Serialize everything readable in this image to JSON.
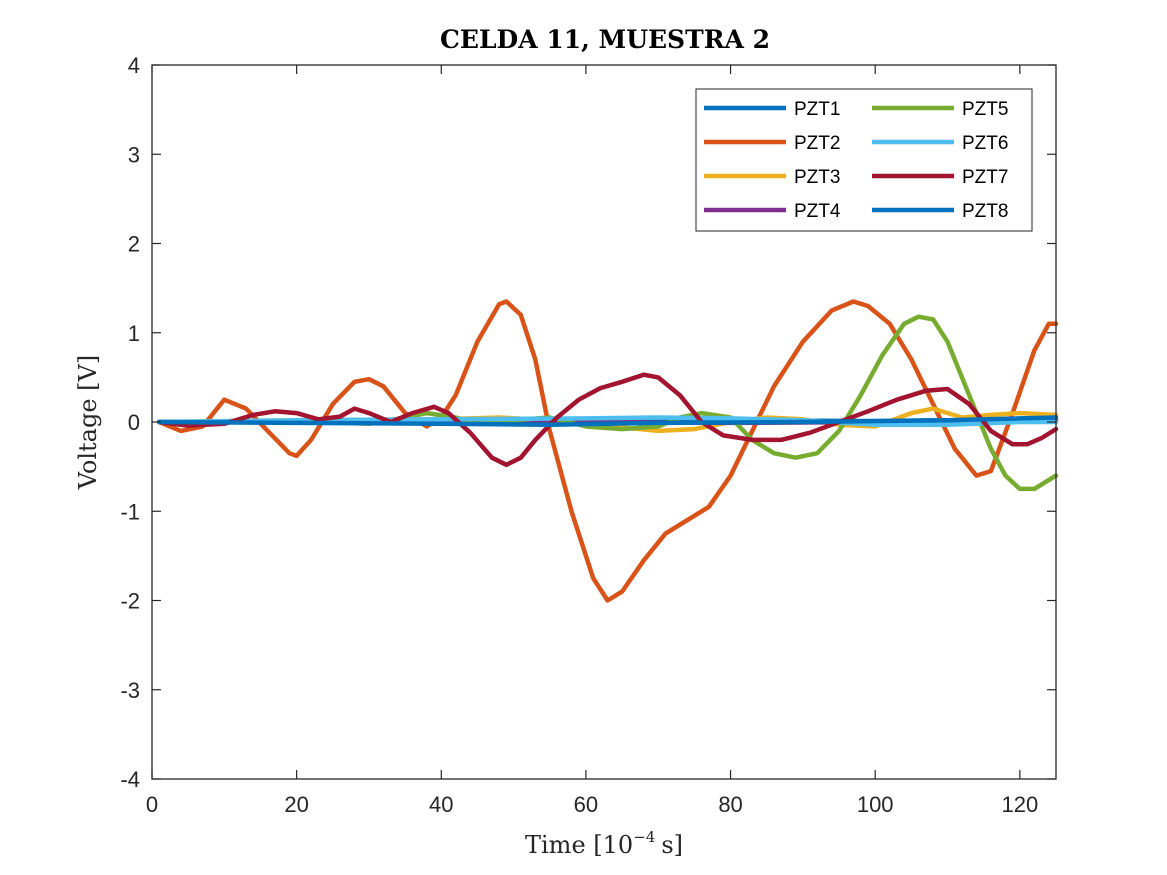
{
  "chart_data": {
    "type": "line",
    "title": "CELDA 11, MUESTRA 2",
    "xlabel": "Time [10",
    "xlabel_exponent": "−4",
    "xlabel_unit": "s]",
    "ylabel": "Voltage [V]",
    "xlim": [
      0,
      125
    ],
    "ylim": [
      -4,
      4
    ],
    "xticks": [
      0,
      20,
      40,
      60,
      80,
      100,
      120
    ],
    "yticks": [
      -4,
      -3,
      -2,
      -1,
      0,
      1,
      2,
      3,
      4
    ],
    "grid": false,
    "legend_position": "top-right",
    "legend_columns": 2,
    "series": [
      {
        "name": "PZT1",
        "color": "#0072BD",
        "x": [
          1,
          20,
          40,
          60,
          80,
          100,
          110,
          120,
          125
        ],
        "y": [
          0,
          0.01,
          0.02,
          0.03,
          0.02,
          0.01,
          0.02,
          0.02,
          0.02
        ]
      },
      {
        "name": "PZT2",
        "color": "#D95319",
        "x": [
          1,
          4,
          7,
          10,
          13,
          16,
          19,
          20,
          22,
          25,
          28,
          30,
          32,
          35,
          38,
          40,
          42,
          45,
          48,
          49,
          51,
          53,
          55,
          58,
          61,
          63,
          65,
          68,
          71,
          74,
          77,
          80,
          83,
          86,
          90,
          94,
          97,
          99,
          102,
          105,
          108,
          111,
          114,
          116,
          119,
          122,
          124,
          125
        ],
        "y": [
          0,
          -0.1,
          -0.05,
          0.25,
          0.15,
          -0.1,
          -0.35,
          -0.38,
          -0.2,
          0.2,
          0.45,
          0.48,
          0.4,
          0.1,
          -0.05,
          0.05,
          0.3,
          0.9,
          1.32,
          1.35,
          1.2,
          0.7,
          -0.1,
          -1.0,
          -1.75,
          -2.0,
          -1.9,
          -1.55,
          -1.25,
          -1.1,
          -0.95,
          -0.6,
          -0.1,
          0.4,
          0.9,
          1.25,
          1.35,
          1.3,
          1.1,
          0.7,
          0.2,
          -0.3,
          -0.6,
          -0.55,
          0.1,
          0.8,
          1.1,
          1.1
        ]
      },
      {
        "name": "PZT3",
        "color": "#EDB120",
        "x": [
          1,
          20,
          40,
          48,
          55,
          60,
          65,
          70,
          75,
          80,
          85,
          90,
          95,
          100,
          105,
          108,
          112,
          116,
          120,
          125
        ],
        "y": [
          0,
          0.02,
          0.03,
          0.05,
          0.02,
          -0.04,
          -0.06,
          -0.1,
          -0.08,
          0,
          0.05,
          0.03,
          -0.03,
          -0.05,
          0.1,
          0.15,
          0.05,
          0.08,
          0.1,
          0.08
        ]
      },
      {
        "name": "PZT4",
        "color": "#7E2F8E",
        "x": [
          1,
          20,
          40,
          60,
          80,
          100,
          120,
          125
        ],
        "y": [
          0,
          0,
          0.01,
          0,
          -0.01,
          0,
          0.01,
          0.01
        ]
      },
      {
        "name": "PZT5",
        "color": "#77AC30",
        "x": [
          1,
          20,
          30,
          35,
          38,
          42,
          45,
          50,
          55,
          60,
          65,
          70,
          73,
          76,
          80,
          83,
          86,
          89,
          92,
          95,
          98,
          101,
          104,
          106,
          108,
          110,
          113,
          116,
          118,
          120,
          122,
          125
        ],
        "y": [
          0,
          0.01,
          -0.02,
          0.05,
          0.1,
          0.05,
          -0.02,
          0.02,
          0.05,
          -0.05,
          -0.08,
          -0.05,
          0.05,
          0.1,
          0.05,
          -0.2,
          -0.35,
          -0.4,
          -0.35,
          -0.1,
          0.3,
          0.75,
          1.1,
          1.18,
          1.15,
          0.9,
          0.3,
          -0.3,
          -0.6,
          -0.75,
          -0.75,
          -0.6
        ]
      },
      {
        "name": "PZT6",
        "color": "#4DBEEE",
        "x": [
          1,
          20,
          40,
          60,
          70,
          80,
          90,
          100,
          110,
          120,
          125
        ],
        "y": [
          0,
          0.02,
          0.03,
          0.04,
          0.05,
          0.04,
          0.02,
          -0.03,
          -0.03,
          0.0,
          0.0
        ]
      },
      {
        "name": "PZT7",
        "color": "#A2142F",
        "x": [
          1,
          5,
          10,
          14,
          17,
          20,
          23,
          26,
          28,
          30,
          33,
          36,
          39,
          41,
          44,
          47,
          49,
          51,
          53,
          56,
          59,
          62,
          65,
          68,
          70,
          73,
          76,
          79,
          83,
          87,
          91,
          95,
          99,
          103,
          107,
          110,
          113,
          116,
          119,
          121,
          123,
          125
        ],
        "y": [
          0,
          -0.04,
          -0.02,
          0.08,
          0.12,
          0.1,
          0.03,
          0.06,
          0.15,
          0.1,
          0.0,
          0.1,
          0.17,
          0.1,
          -0.12,
          -0.4,
          -0.48,
          -0.4,
          -0.2,
          0.05,
          0.25,
          0.38,
          0.45,
          0.53,
          0.5,
          0.3,
          0.0,
          -0.15,
          -0.2,
          -0.2,
          -0.12,
          0.0,
          0.12,
          0.25,
          0.35,
          0.37,
          0.2,
          -0.1,
          -0.25,
          -0.25,
          -0.18,
          -0.08
        ]
      },
      {
        "name": "PZT8",
        "color": "#0072BD",
        "x": [
          1,
          20,
          40,
          55,
          70,
          90,
          110,
          120,
          125
        ],
        "y": [
          0,
          -0.01,
          -0.02,
          -0.03,
          -0.01,
          0.0,
          0.02,
          0.04,
          0.05
        ]
      }
    ]
  }
}
